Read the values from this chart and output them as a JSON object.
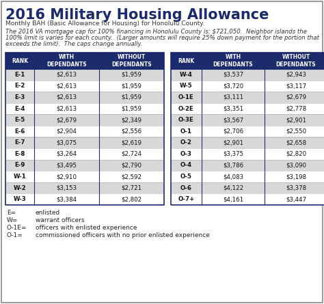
{
  "title": "2016 Military Housing Allowance",
  "subtitle": "Monthly BAH (Basic Allowance for Housing) for Honolulu County.",
  "note": "The 2016 VA mortgage cap for 100% financing in Honolulu County is: $721,050.  Neighbor islands the\n100% limit is varies for each county.  (Larger amounts will require 25% down payment for the portion that\nexceeds the limit).  The caps change annually.",
  "header_bg": "#1c2a6e",
  "header_text": "#ffffff",
  "row_odd_bg": "#d8d8d8",
  "row_even_bg": "#ffffff",
  "border_color": "#1c2a6e",
  "left_table": {
    "headers": [
      "RANK",
      "WITH\nDEPENDANTS",
      "WITHOUT\nDEPENDANTS"
    ],
    "rows": [
      [
        "E-1",
        "$2,613",
        "$1,959"
      ],
      [
        "E-2",
        "$2,613",
        "$1,959"
      ],
      [
        "E-3",
        "$2,613",
        "$1,959"
      ],
      [
        "E-4",
        "$2,613",
        "$1,959"
      ],
      [
        "E-5",
        "$2,679",
        "$2,349"
      ],
      [
        "E-6",
        "$2,904",
        "$2,556"
      ],
      [
        "E-7",
        "$3,075",
        "$2,619"
      ],
      [
        "E-8",
        "$3,264",
        "$2,724"
      ],
      [
        "E-9",
        "$3,495",
        "$2,790"
      ],
      [
        "W-1",
        "$2,910",
        "$2,592"
      ],
      [
        "W-2",
        "$3,153",
        "$2,721"
      ],
      [
        "W-3",
        "$3,384",
        "$2,802"
      ]
    ]
  },
  "right_table": {
    "headers": [
      "RANK",
      "WITH\nDEPENDANTS",
      "WITHOUT\nDEPENDANTS"
    ],
    "rows": [
      [
        "W-4",
        "$3,537",
        "$2,943"
      ],
      [
        "W-5",
        "$3,720",
        "$3,117"
      ],
      [
        "O-1E",
        "$3,111",
        "$2,679"
      ],
      [
        "O-2E",
        "$3,351",
        "$2,778"
      ],
      [
        "O-3E",
        "$3,567",
        "$2,901"
      ],
      [
        "O-1",
        "$2,706",
        "$2,550"
      ],
      [
        "O-2",
        "$2,901",
        "$2,658"
      ],
      [
        "O-3",
        "$3,375",
        "$2,820"
      ],
      [
        "O-4",
        "$3,786",
        "$3,090"
      ],
      [
        "O-5",
        "$4,083",
        "$3,198"
      ],
      [
        "O-6",
        "$4,122",
        "$3,378"
      ],
      [
        "O-7+",
        "$4,161",
        "$3,447"
      ]
    ]
  },
  "legend": [
    [
      "E=",
      "enlisted"
    ],
    [
      "W=",
      "warrant officers"
    ],
    [
      "O-1E=",
      "officers with enlisted experience"
    ],
    [
      "O-1=",
      "commissioned officers with no prior enlisted experience"
    ]
  ],
  "bg_color": "#f0efe8",
  "outer_border": "#888888"
}
